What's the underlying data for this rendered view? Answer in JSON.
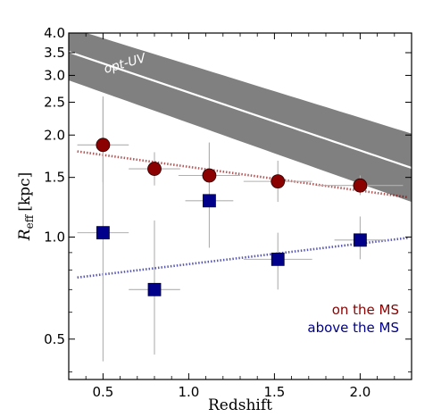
{
  "chart_data": {
    "type": "scatter",
    "xlabel": "Redshift",
    "ylabel_main": "R",
    "ylabel_sub": "eff",
    "ylabel_unit": "[kpc]",
    "xlim": [
      0.3,
      2.3
    ],
    "ylim": [
      0.38,
      4.0
    ],
    "yscale": "log",
    "x_ticks": [
      0.5,
      1.0,
      1.5,
      2.0
    ],
    "x_tick_labels": [
      "0.5",
      "1.0",
      "1.5",
      "2.0"
    ],
    "y_ticks": [
      0.5,
      1.0,
      1.5,
      2.0,
      2.5,
      3.0,
      3.5,
      4.0
    ],
    "y_tick_labels": [
      "0.5",
      "1.0",
      "1.5",
      "2.0",
      "2.5",
      "3.0",
      "3.5",
      "4.0"
    ],
    "band": {
      "label": "opt-UV",
      "color": "#808080",
      "x": [
        0.3,
        2.3
      ],
      "center_y": [
        3.52,
        1.6
      ],
      "lower_y": [
        2.9,
        1.27
      ],
      "upper_y": [
        4.15,
        2.02
      ]
    },
    "series": [
      {
        "name": "on the MS",
        "color": "#8b0000",
        "marker": "circle",
        "points": [
          {
            "x": 0.5,
            "y": 1.87,
            "xerr": 0.15,
            "ylo": 1.45,
            "yhi": 2.55
          },
          {
            "x": 0.8,
            "y": 1.59,
            "xerr": 0.15,
            "ylo": 1.42,
            "yhi": 1.78
          },
          {
            "x": 1.12,
            "y": 1.52,
            "xerr": 0.18,
            "ylo": 1.36,
            "yhi": 1.9
          },
          {
            "x": 1.52,
            "y": 1.46,
            "xerr": 0.2,
            "ylo": 1.27,
            "yhi": 1.68
          },
          {
            "x": 2.0,
            "y": 1.42,
            "xerr": 0.25,
            "ylo": 1.33,
            "yhi": 1.52
          }
        ],
        "trend": {
          "x": [
            0.35,
            2.28
          ],
          "y": [
            1.79,
            1.31
          ],
          "style": "dotted"
        }
      },
      {
        "name": "above the MS",
        "color": "#00008b",
        "marker": "square",
        "points": [
          {
            "x": 0.5,
            "y": 1.03,
            "xerr": 0.15,
            "ylo": 0.43,
            "yhi": 2.6
          },
          {
            "x": 0.8,
            "y": 0.7,
            "xerr": 0.15,
            "ylo": 0.45,
            "yhi": 1.12
          },
          {
            "x": 1.12,
            "y": 1.28,
            "xerr": 0.14,
            "ylo": 0.93,
            "yhi": 1.9
          },
          {
            "x": 1.52,
            "y": 0.86,
            "xerr": 0.2,
            "ylo": 0.7,
            "yhi": 1.03
          },
          {
            "x": 2.0,
            "y": 0.98,
            "xerr": 0.15,
            "ylo": 0.86,
            "yhi": 1.15
          }
        ],
        "trend": {
          "x": [
            0.35,
            2.28
          ],
          "y": [
            0.76,
            0.995
          ],
          "style": "dotted"
        }
      }
    ],
    "errorbar_color": "#b0b0b0",
    "legend": {
      "placement": "bottom-right"
    }
  }
}
